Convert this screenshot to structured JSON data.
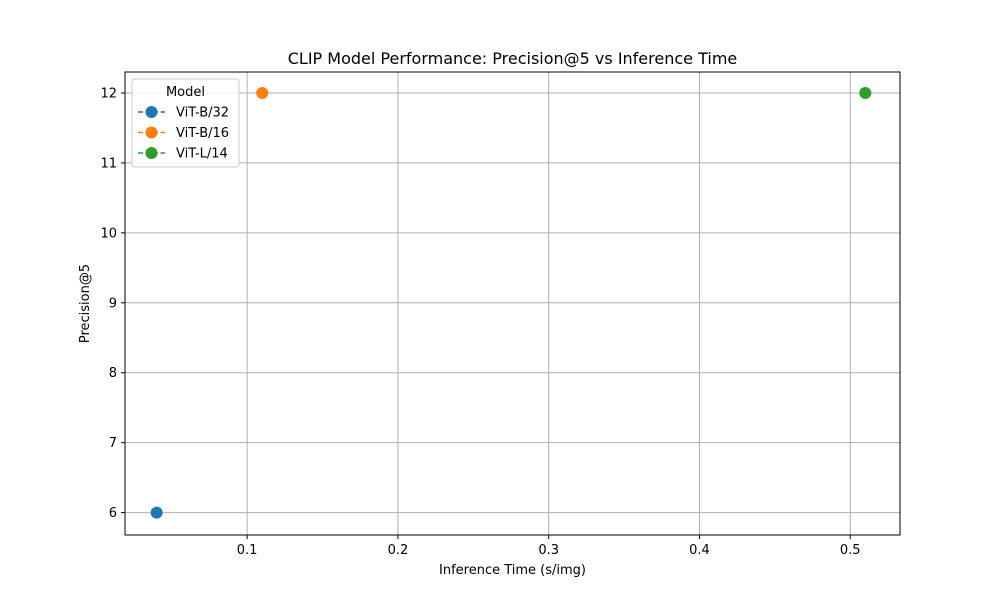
{
  "chart_data": {
    "type": "scatter",
    "title": "CLIP Model Performance: Precision@5 vs Inference Time",
    "xlabel": "Inference Time (s/img)",
    "ylabel": "Precision@5",
    "xlim": [
      0.019,
      0.533
    ],
    "ylim": [
      5.68,
      12.3
    ],
    "xticks": [
      0.1,
      0.2,
      0.3,
      0.4,
      0.5
    ],
    "yticks": [
      6,
      7,
      8,
      9,
      10,
      11,
      12
    ],
    "grid": true,
    "legend": {
      "title": "Model",
      "placement": "top-left"
    },
    "series": [
      {
        "name": "ViT-B/32",
        "color": "#1f77b4",
        "points": [
          {
            "x": 0.04,
            "y": 6
          }
        ]
      },
      {
        "name": "ViT-B/16",
        "color": "#ff7f0e",
        "points": [
          {
            "x": 0.11,
            "y": 12
          }
        ]
      },
      {
        "name": "ViT-L/14",
        "color": "#2ca02c",
        "points": [
          {
            "x": 0.51,
            "y": 12
          }
        ]
      }
    ]
  }
}
